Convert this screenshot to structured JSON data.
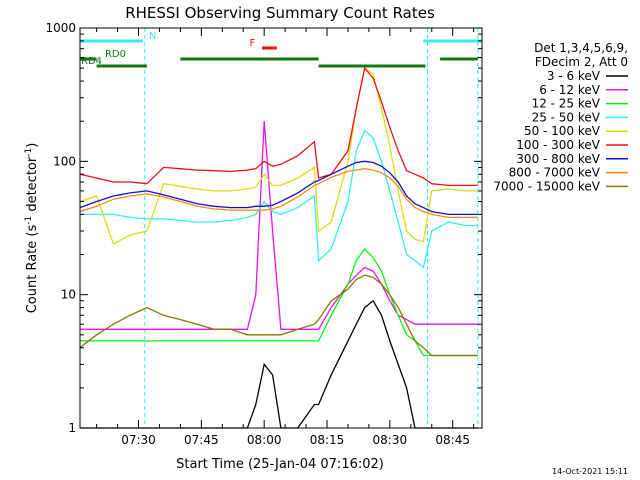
{
  "chart_data": {
    "type": "line",
    "title": "RHESSI Observing Summary Count Rates",
    "xlabel": "Start Time (25-Jan-04 07:16:02)",
    "ylabel_main": "Count Rate (s",
    "ylabel_sup": "-1",
    "ylabel_mid": " detector",
    "ylabel_end": ")",
    "y_scale": "log",
    "ylim": [
      1,
      1000
    ],
    "xlim": [
      "07:16:02",
      "08:52:00"
    ],
    "x_ticks": [
      {
        "t": "07:30",
        "label": "07:30"
      },
      {
        "t": "07:45",
        "label": "07:45"
      },
      {
        "t": "08:00",
        "label": "08:00"
      },
      {
        "t": "08:15",
        "label": "08:15"
      },
      {
        "t": "08:30",
        "label": "08:30"
      },
      {
        "t": "08:45",
        "label": "08:45"
      }
    ],
    "y_ticks": [
      {
        "v": 1,
        "label": "1"
      },
      {
        "v": 10,
        "label": "10"
      },
      {
        "v": 100,
        "label": "100"
      },
      {
        "v": 1000,
        "label": "1000"
      }
    ],
    "legend_position": "right",
    "legend_header": [
      "Det 1,3,4,5,6,9,",
      "FDecim 2, Att 0"
    ],
    "footer_date": "14-Oct-2021 15:11",
    "flag_bars": [
      {
        "label": "N",
        "color": "#33eeee",
        "level": 1,
        "segments": [
          [
            "07:16:02",
            "07:31:00"
          ],
          [
            "08:38:00",
            "08:52:00"
          ]
        ]
      },
      {
        "label": "F",
        "color": "#ee1111",
        "level": 2,
        "segments": [
          [
            "07:59:30",
            "08:03:00"
          ]
        ]
      },
      {
        "label": "RD0",
        "color": "#117711",
        "level": 3,
        "segments": [
          [
            "07:16:02",
            "07:20:00"
          ],
          [
            "07:40:00",
            "08:13:00"
          ],
          [
            "08:42:00",
            "08:51:00"
          ]
        ]
      },
      {
        "label": "RD4",
        "color": "#117711",
        "level": 4,
        "segments": [
          [
            "07:20:00",
            "07:32:00"
          ],
          [
            "08:13:00",
            "08:38:30"
          ]
        ]
      }
    ],
    "saa_lines": [
      "07:31:30",
      "08:39:00",
      "08:51:00"
    ],
    "x": [
      "07:16",
      "07:20",
      "07:24",
      "07:28",
      "07:32",
      "07:36",
      "07:40",
      "07:44",
      "07:48",
      "07:52",
      "07:56",
      "07:58",
      "08:00",
      "08:02",
      "08:04",
      "08:08",
      "08:12",
      "08:13",
      "08:16",
      "08:20",
      "08:22",
      "08:24",
      "08:26",
      "08:28",
      "08:30",
      "08:32",
      "08:34",
      "08:36",
      "08:38",
      "08:40",
      "08:44",
      "08:48",
      "08:51"
    ],
    "series": [
      {
        "name": "3 - 6 keV",
        "color": "#000000",
        "values": [
          1,
          1,
          1,
          1,
          1,
          1,
          1,
          1,
          1,
          1,
          1,
          1.5,
          3,
          2.5,
          1,
          1,
          1.5,
          1.5,
          2.5,
          4.5,
          6,
          8,
          9,
          7,
          4.5,
          3,
          2,
          1,
          1,
          1,
          1,
          1,
          1
        ]
      },
      {
        "name": "6 - 12 keV",
        "color": "#ee11ee",
        "values": [
          5.5,
          5.5,
          5.5,
          5.5,
          5.5,
          5.5,
          5.5,
          5.5,
          5.5,
          5.5,
          5.5,
          10,
          200,
          30,
          5.5,
          5.5,
          5.5,
          5.5,
          8,
          12,
          14,
          16,
          15,
          12,
          9,
          7,
          6.5,
          6,
          6,
          6,
          6,
          6,
          6
        ]
      },
      {
        "name": "12 - 25 keV",
        "color": "#11ee11",
        "values": [
          4.5,
          4.5,
          4.5,
          4.5,
          4.5,
          4.5,
          4.5,
          4.5,
          4.5,
          4.5,
          4.5,
          4.5,
          4.5,
          4.5,
          4.5,
          4.5,
          4.5,
          4.5,
          7,
          12,
          18,
          22,
          19,
          15,
          10,
          7,
          5,
          4.5,
          3.5,
          3.5,
          3.5,
          3.5,
          3.5
        ]
      },
      {
        "name": "25 - 50 keV",
        "color": "#33eeee",
        "values": [
          40,
          40,
          40,
          38,
          37,
          37,
          36,
          35,
          35,
          36,
          38,
          40,
          50,
          42,
          40,
          45,
          55,
          18,
          22,
          50,
          120,
          170,
          150,
          100,
          60,
          35,
          20,
          18,
          16,
          30,
          35,
          33,
          33
        ]
      },
      {
        "name": "50 - 100 keV",
        "color": "#dddd11",
        "values": [
          50,
          55,
          24,
          28,
          30,
          68,
          65,
          62,
          60,
          60,
          62,
          64,
          80,
          66,
          66,
          75,
          90,
          30,
          35,
          100,
          250,
          500,
          450,
          250,
          130,
          60,
          30,
          26,
          25,
          60,
          62,
          60,
          60
        ]
      },
      {
        "name": "100 - 300 keV",
        "color": "#ee1111",
        "values": [
          80,
          75,
          70,
          70,
          68,
          90,
          88,
          86,
          85,
          84,
          86,
          88,
          100,
          92,
          95,
          110,
          140,
          75,
          80,
          120,
          250,
          500,
          420,
          280,
          180,
          120,
          85,
          80,
          75,
          68,
          66,
          66,
          66
        ]
      },
      {
        "name": "300 - 800 keV",
        "color": "#1111cc",
        "values": [
          45,
          50,
          55,
          58,
          60,
          56,
          52,
          48,
          46,
          45,
          45,
          46,
          46,
          47,
          50,
          58,
          70,
          72,
          80,
          92,
          98,
          100,
          98,
          92,
          82,
          70,
          55,
          48,
          45,
          42,
          40,
          40,
          40
        ]
      },
      {
        "name": "800 - 7000 keV",
        "color": "#ff8811",
        "values": [
          42,
          46,
          52,
          55,
          57,
          54,
          50,
          46,
          44,
          43,
          43,
          43,
          43,
          44,
          46,
          54,
          66,
          68,
          76,
          84,
          86,
          88,
          86,
          82,
          75,
          65,
          52,
          45,
          42,
          40,
          38,
          38,
          38
        ]
      },
      {
        "name": "7000 - 15000 keV",
        "color": "#887700",
        "values": [
          4,
          5,
          6,
          7,
          8,
          7,
          6.5,
          6,
          5.5,
          5.5,
          5,
          5,
          5,
          5,
          5,
          5.5,
          6,
          6.5,
          9,
          11,
          13,
          14,
          13.5,
          12,
          10,
          8,
          6,
          4.5,
          4,
          3.5,
          3.5,
          3.5,
          3.5
        ]
      }
    ]
  }
}
